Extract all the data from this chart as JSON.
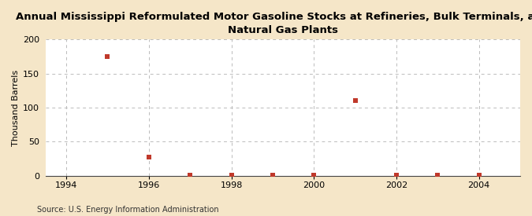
{
  "title_line1": "Annual Mississippi Reformulated Motor Gasoline Stocks at Refineries, Bulk Terminals, and",
  "title_line2": "Natural Gas Plants",
  "ylabel": "Thousand Barrels",
  "source": "Source: U.S. Energy Information Administration",
  "background_color": "#f5e6c8",
  "plot_background_color": "#ffffff",
  "marker_color": "#c0392b",
  "x_data": [
    1995,
    1996,
    1997,
    1998,
    1999,
    2000,
    2001,
    2002,
    2003,
    2004
  ],
  "y_data": [
    175,
    28,
    1,
    1,
    1,
    1,
    111,
    1,
    1,
    1
  ],
  "xlim": [
    1993.5,
    2005.0
  ],
  "ylim": [
    0,
    200
  ],
  "yticks": [
    0,
    50,
    100,
    150,
    200
  ],
  "xticks": [
    1994,
    1996,
    1998,
    2000,
    2002,
    2004
  ],
  "title_fontsize": 9.5,
  "ylabel_fontsize": 8.0,
  "tick_fontsize": 8.0,
  "source_fontsize": 7.0,
  "grid_color": "#bbbbbb",
  "grid_linestyle": "--",
  "marker_size": 16
}
